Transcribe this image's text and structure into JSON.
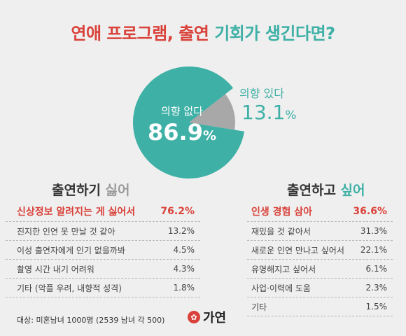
{
  "title": {
    "part1": "연애 프로그램,",
    "part2": " 출연",
    "part3": " 기회",
    "part4": "가 생긴다면?"
  },
  "chart_data": {
    "type": "pie",
    "slices": [
      {
        "label": "의향 없다",
        "value": 86.9,
        "display": "86.9",
        "color": "#3eb0a6"
      },
      {
        "label": "의향 있다",
        "value": 13.1,
        "display": "13.1",
        "color": "#a8a8a8"
      }
    ],
    "unit": "%"
  },
  "left_column": {
    "heading_main": "출연하기 ",
    "heading_accent": "싫어",
    "items": [
      {
        "label": "신상정보 알려지는 게 싫어서",
        "value": "76.2%"
      },
      {
        "label": "진지한 인연 못 만날 것 같아",
        "value": "13.2%"
      },
      {
        "label": "이성 출연자에게 인기 없을까봐",
        "value": "4.5%"
      },
      {
        "label": "촬영 시간 내기 어려워",
        "value": "4.3%"
      },
      {
        "label": "기타  (악플 우려, 내향적 성격)",
        "value": "1.8%"
      }
    ]
  },
  "right_column": {
    "heading_main": "출연하고 ",
    "heading_accent": "싶어",
    "items": [
      {
        "label": "인생 경험 삼아",
        "value": "36.6%"
      },
      {
        "label": "재밌을 것 같아서",
        "value": "31.3%"
      },
      {
        "label": "새로운 인연 만나고 싶어서",
        "value": "22.1%"
      },
      {
        "label": "유명해지고 싶어서",
        "value": "6.1%"
      },
      {
        "label": "사업·이력에 도움",
        "value": "2.3%"
      },
      {
        "label": "기타",
        "value": "1.5%"
      }
    ]
  },
  "footnote": "대상: 미혼남녀 1000명 (2539 남녀 각 500)",
  "logo": {
    "text": "가연",
    "icon": "gayeon-logo-icon"
  }
}
